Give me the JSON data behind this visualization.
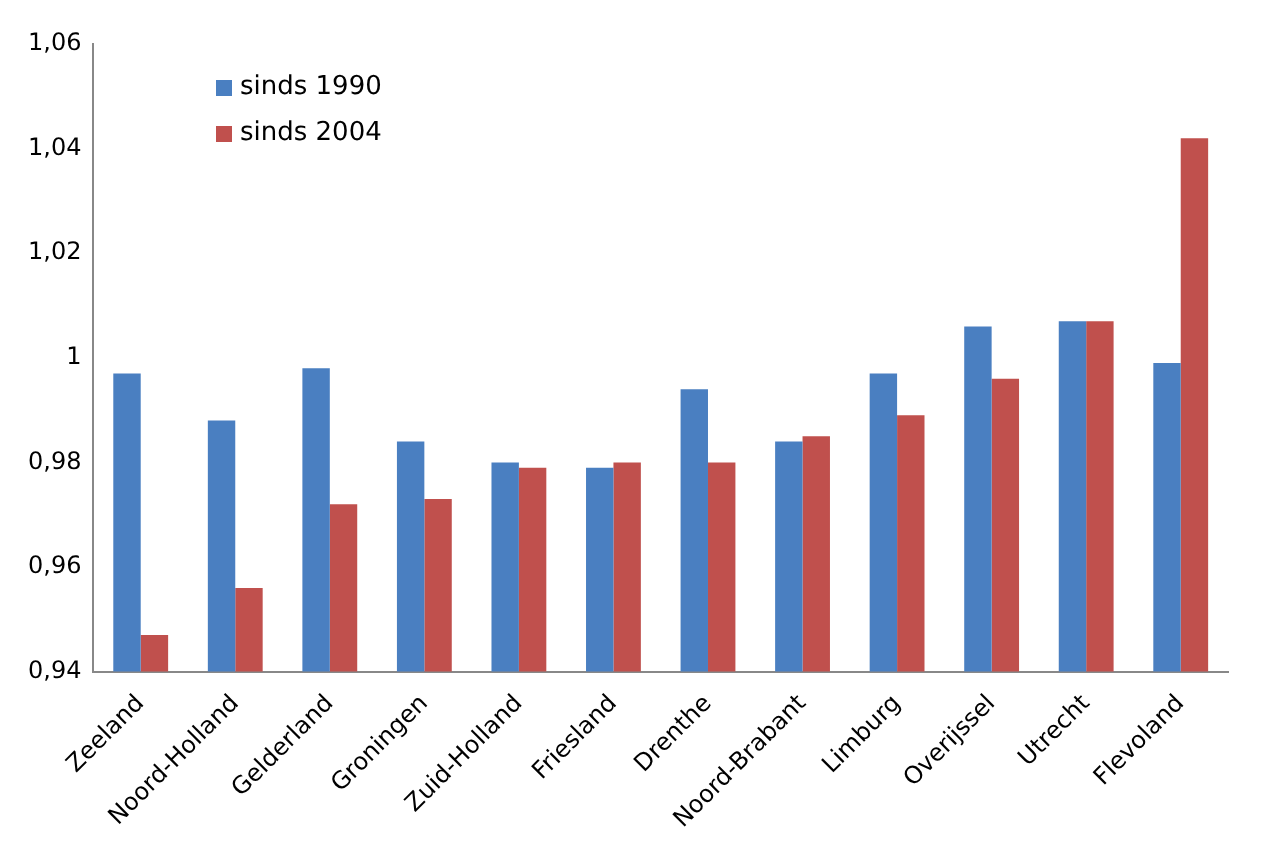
{
  "chart_data": {
    "type": "bar",
    "categories": [
      "Zeeland",
      "Noord-Holland",
      "Gelderland",
      "Groningen",
      "Zuid-Holland",
      "Friesland",
      "Drenthe",
      "Noord-Brabant",
      "Limburg",
      "Overijssel",
      "Utrecht",
      "Flevoland"
    ],
    "series": [
      {
        "name": "sinds 1990",
        "color": "#4a7fc1",
        "values": [
          0.997,
          0.988,
          0.998,
          0.984,
          0.98,
          0.979,
          0.994,
          0.984,
          0.997,
          1.006,
          1.007,
          0.999
        ]
      },
      {
        "name": "sinds 2004",
        "color": "#c0504d",
        "values": [
          0.947,
          0.956,
          0.972,
          0.973,
          0.979,
          0.98,
          0.98,
          0.985,
          0.989,
          0.996,
          1.007,
          1.042
        ]
      }
    ],
    "ylim": [
      0.94,
      1.06
    ],
    "yticks": [
      {
        "value": 0.94,
        "label": "0,94"
      },
      {
        "value": 0.96,
        "label": "0,96"
      },
      {
        "value": 0.98,
        "label": "0,98"
      },
      {
        "value": 1,
        "label": "1"
      },
      {
        "value": 1.02,
        "label": "1,02"
      },
      {
        "value": 1.04,
        "label": "1,04"
      },
      {
        "value": 1.06,
        "label": "1,06"
      }
    ],
    "grid": false,
    "legend": "top left"
  }
}
